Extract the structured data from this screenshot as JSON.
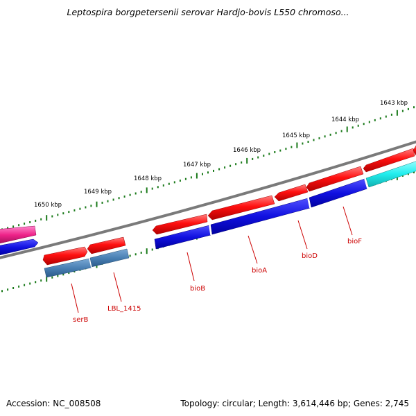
{
  "title": "Leptospira borgpetersenii serovar Hardjo-bovis L550 chromoso...",
  "footer": {
    "accession": "Accession: NC_008508",
    "summary": "Topology: circular; Length: 3,614,446 bp; Genes: 2,745"
  },
  "colors": {
    "backbone": "#7a7a7a",
    "tick": "#1a7a1a",
    "gene_forward": "#ff1010",
    "cds_blue": "#1010e0",
    "cds_steel": "#4a80b4",
    "cds_cyan": "#22eeee",
    "gene_pink": "#ee2288",
    "label": "#cc0000"
  },
  "scale_labels": [
    "1643 kbp",
    "1644 kbp",
    "1645 kbp",
    "1646 kbp",
    "1647 kbp",
    "1648 kbp",
    "1649 kbp",
    "1650 kbp"
  ],
  "gene_labels": [
    "serB",
    "LBL_1415",
    "bioB",
    "bioA",
    "bioD",
    "bioF"
  ]
}
